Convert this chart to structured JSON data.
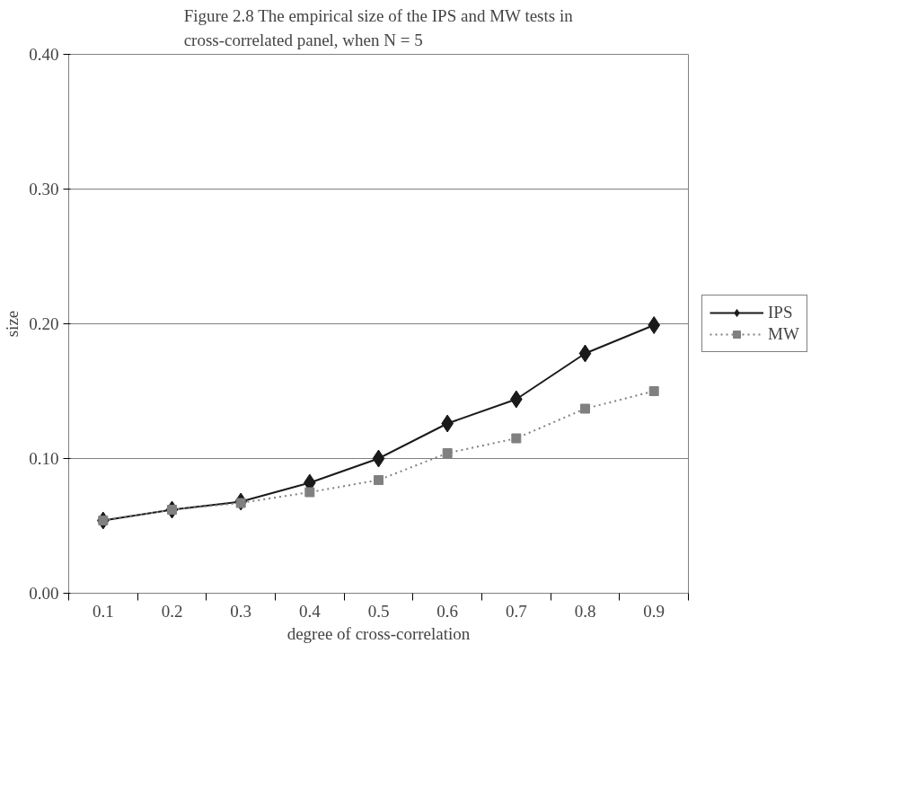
{
  "chart_data": {
    "type": "line",
    "title": "Figure 2.8 The empirical size of the IPS and MW tests in cross-correlated panel, when N = 5",
    "xlabel": "degree of cross-correlation",
    "ylabel": "size",
    "categories": [
      "0.1",
      "0.2",
      "0.3",
      "0.4",
      "0.5",
      "0.6",
      "0.7",
      "0.8",
      "0.9"
    ],
    "series": [
      {
        "name": "IPS",
        "color": "#1a1a1a",
        "marker": "diamond",
        "line_style": "solid",
        "values": [
          0.054,
          0.062,
          0.068,
          0.082,
          0.1,
          0.126,
          0.144,
          0.178,
          0.199
        ]
      },
      {
        "name": "MW",
        "color": "#808080",
        "marker": "square",
        "line_style": "dotted",
        "values": [
          0.054,
          0.062,
          0.067,
          0.075,
          0.084,
          0.104,
          0.115,
          0.137,
          0.15
        ]
      }
    ],
    "ylim": [
      0,
      0.4
    ],
    "yticks": [
      {
        "value": 0,
        "label": "0.00"
      },
      {
        "value": 0.1,
        "label": "0.10"
      },
      {
        "value": 0.2,
        "label": "0.20"
      },
      {
        "value": 0.3,
        "label": "0.30"
      },
      {
        "value": 0.4,
        "label": "0.40"
      }
    ],
    "grid": "y",
    "legend": "right"
  }
}
